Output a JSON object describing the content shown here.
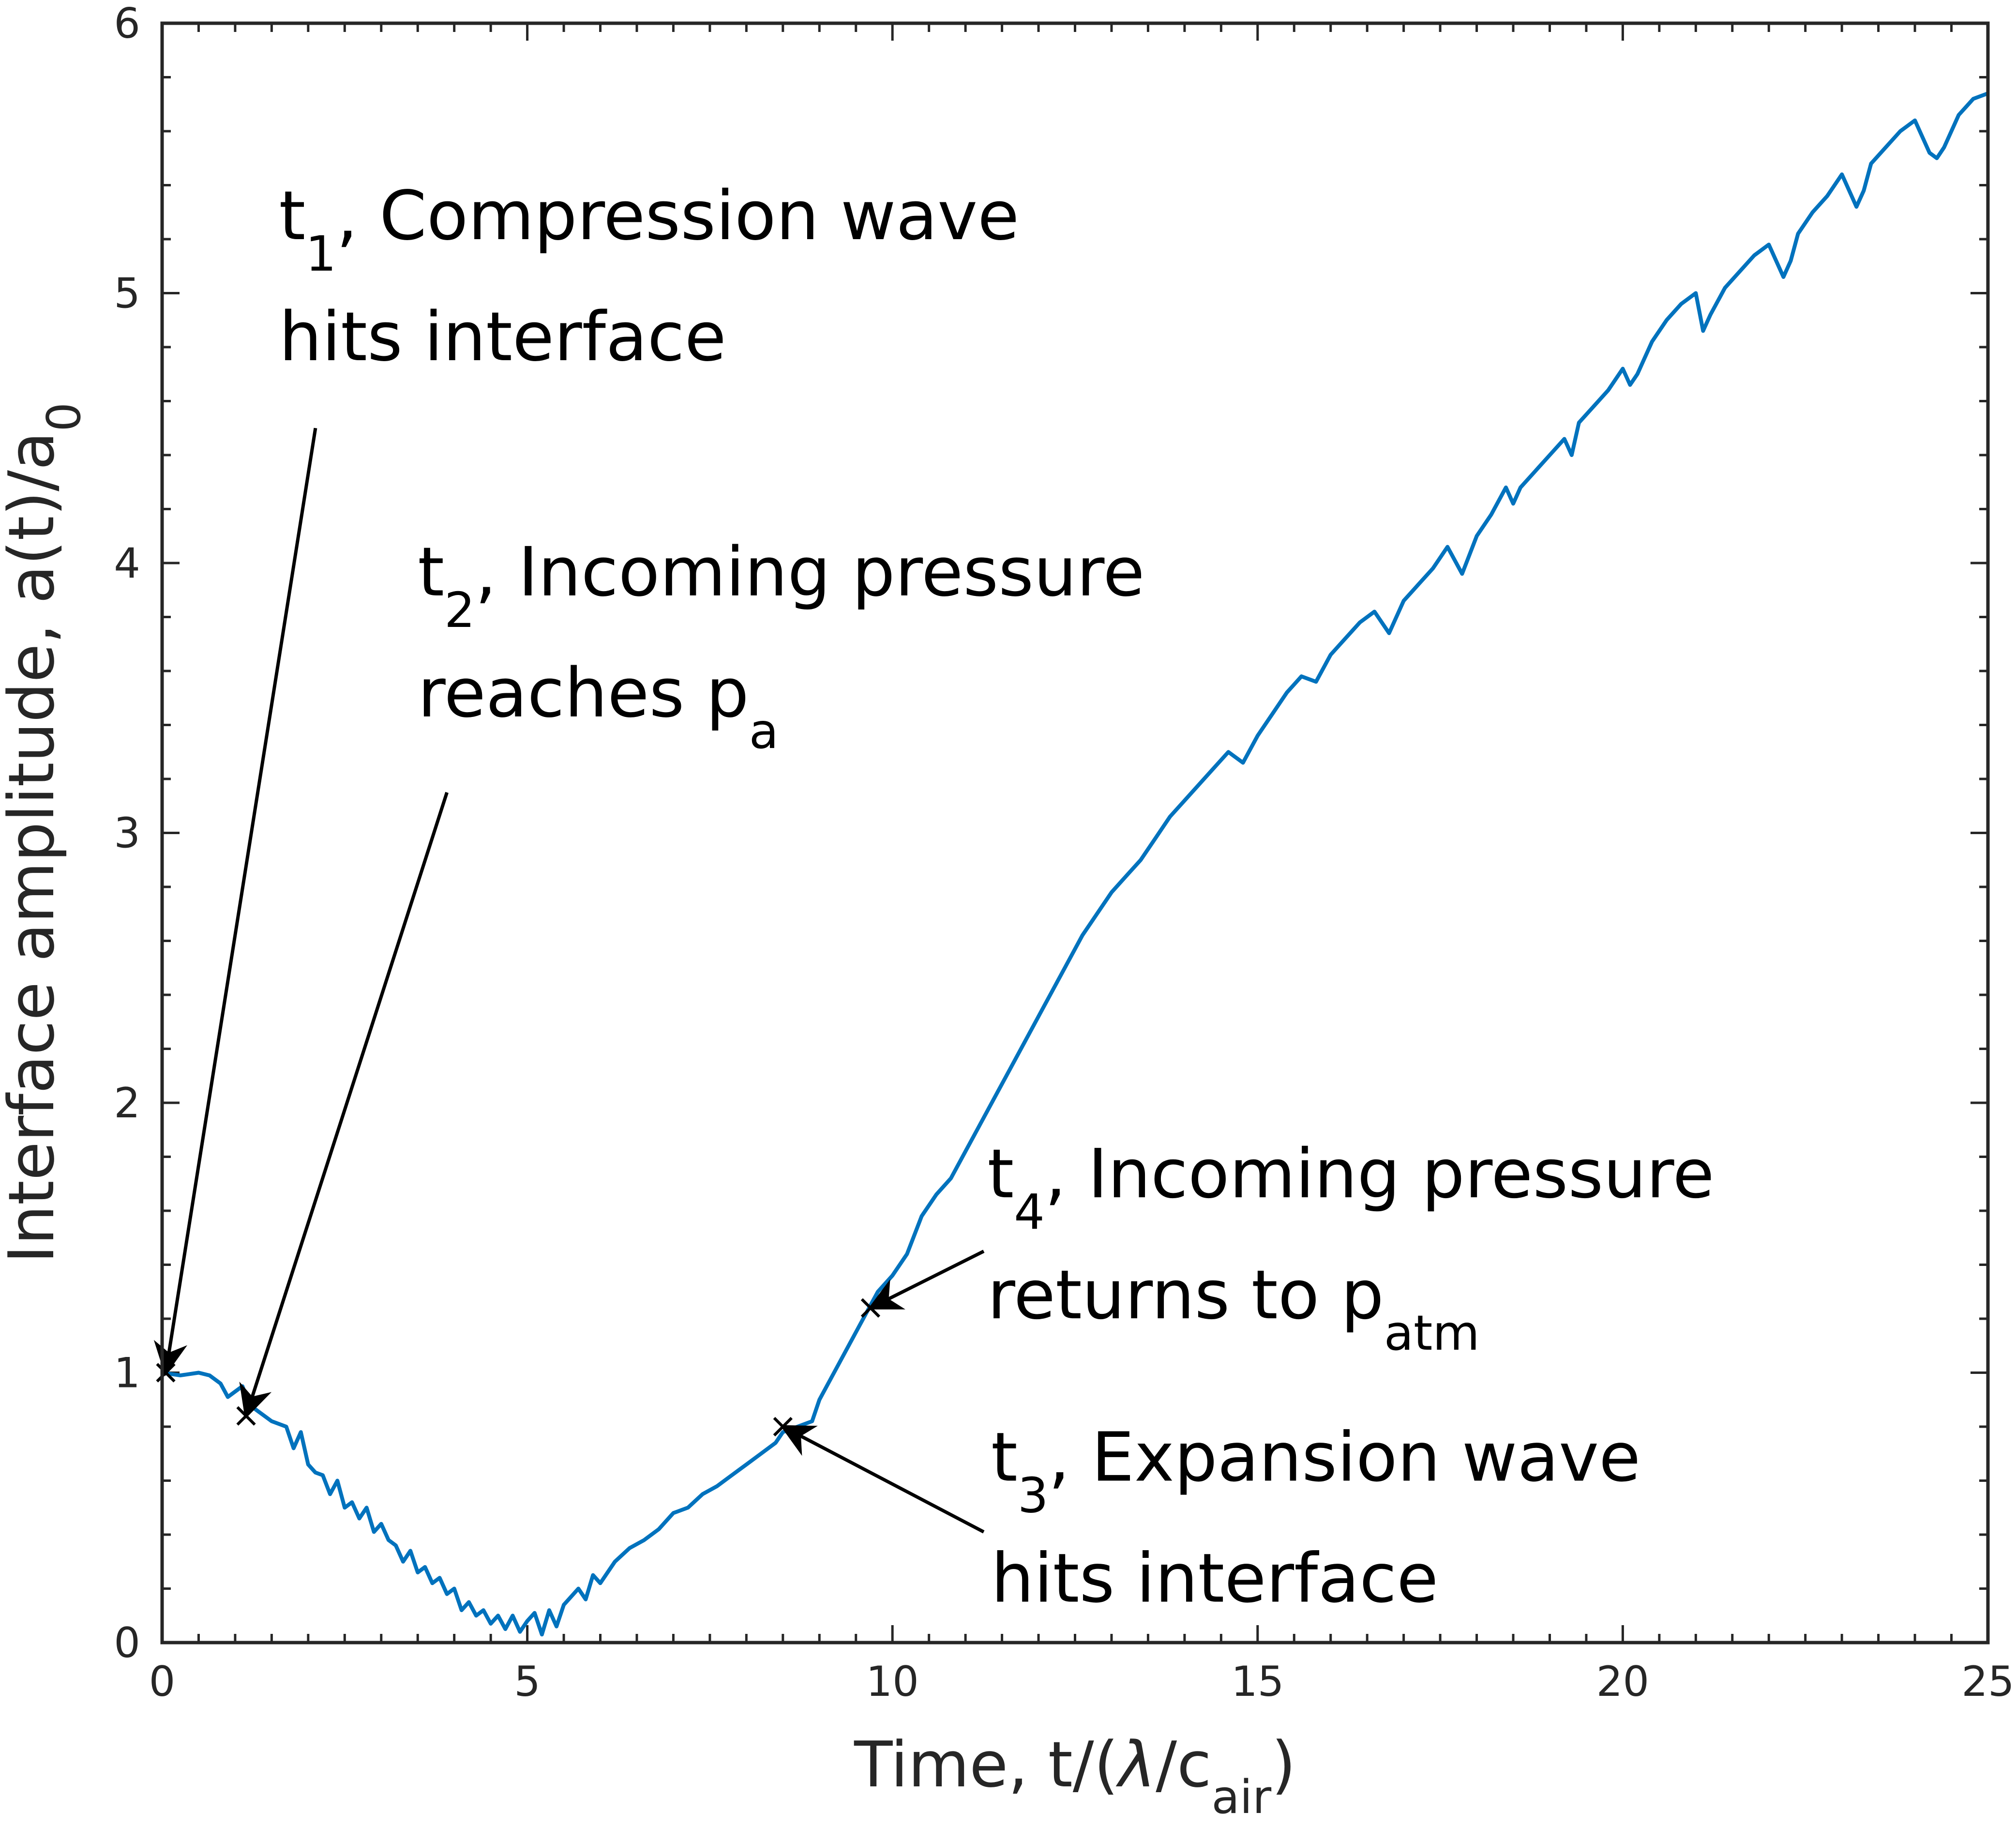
{
  "chart_data": {
    "type": "line",
    "xlabel": {
      "main": "Time, t/(",
      "lambda": "λ",
      "mid": "/c",
      "sub": "air",
      "end": ")"
    },
    "ylabel": {
      "main": "Interface amplitude, a(t)/a",
      "sub": "0"
    },
    "xlim": [
      0,
      25
    ],
    "ylim": [
      0,
      6
    ],
    "xticks": [
      0,
      5,
      10,
      15,
      20,
      25
    ],
    "yticks": [
      0,
      1,
      2,
      3,
      4,
      5,
      6
    ],
    "grid": false,
    "line_color": "#0072BD",
    "series": [
      {
        "x": [
          0,
          0.25,
          0.5,
          0.65,
          0.8,
          0.9,
          1.0,
          1.1,
          1.2,
          1.3,
          1.5,
          1.7,
          1.8,
          1.9,
          2.0,
          2.1,
          2.2,
          2.3,
          2.4,
          2.5,
          2.6,
          2.7,
          2.8,
          2.9,
          3.0,
          3.1,
          3.2,
          3.3,
          3.4,
          3.5,
          3.6,
          3.7,
          3.8,
          3.9,
          4.0,
          4.1,
          4.2,
          4.3,
          4.4,
          4.5,
          4.6,
          4.7,
          4.8,
          4.9,
          5.0,
          5.1,
          5.2,
          5.3,
          5.4,
          5.5,
          5.6,
          5.7,
          5.8,
          5.9,
          6.0,
          6.2,
          6.4,
          6.6,
          6.8,
          7.0,
          7.2,
          7.4,
          7.6,
          7.8,
          8.0,
          8.2,
          8.4,
          8.5,
          8.7,
          8.9,
          9.0,
          9.2,
          9.4,
          9.6,
          9.8,
          10.0,
          10.2,
          10.4,
          10.6,
          10.8,
          11.0,
          11.2,
          11.4,
          11.6,
          11.8,
          12.0,
          12.2,
          12.4,
          12.6,
          12.8,
          13.0,
          13.2,
          13.4,
          13.6,
          13.8,
          14.0,
          14.2,
          14.4,
          14.6,
          14.8,
          15.0,
          15.2,
          15.4,
          15.6,
          15.8,
          16.0,
          16.2,
          16.4,
          16.6,
          16.8,
          17.0,
          17.2,
          17.4,
          17.6,
          17.8,
          18.0,
          18.2,
          18.4,
          18.5,
          18.6,
          18.8,
          19.0,
          19.2,
          19.3,
          19.4,
          19.6,
          19.8,
          20.0,
          20.1,
          20.2,
          20.4,
          20.6,
          20.8,
          21.0,
          21.1,
          21.2,
          21.4,
          21.6,
          21.8,
          22.0,
          22.2,
          22.3,
          22.4,
          22.6,
          22.8,
          23.0,
          23.2,
          23.3,
          23.4,
          23.6,
          23.8,
          24.0,
          24.2,
          24.3,
          24.4,
          24.6,
          24.8,
          25.0
        ],
        "y": [
          1.0,
          0.99,
          1.0,
          0.99,
          0.96,
          0.91,
          0.93,
          0.95,
          0.88,
          0.86,
          0.82,
          0.8,
          0.72,
          0.78,
          0.66,
          0.63,
          0.62,
          0.55,
          0.6,
          0.5,
          0.52,
          0.46,
          0.5,
          0.41,
          0.44,
          0.38,
          0.36,
          0.3,
          0.34,
          0.26,
          0.28,
          0.22,
          0.24,
          0.18,
          0.2,
          0.12,
          0.15,
          0.1,
          0.12,
          0.07,
          0.1,
          0.05,
          0.1,
          0.04,
          0.08,
          0.11,
          0.03,
          0.12,
          0.06,
          0.14,
          0.17,
          0.2,
          0.16,
          0.25,
          0.22,
          0.3,
          0.35,
          0.38,
          0.42,
          0.48,
          0.5,
          0.55,
          0.58,
          0.62,
          0.66,
          0.7,
          0.74,
          0.78,
          0.8,
          0.82,
          0.9,
          1.0,
          1.1,
          1.2,
          1.3,
          1.36,
          1.44,
          1.58,
          1.66,
          1.72,
          1.82,
          1.92,
          2.02,
          2.12,
          2.22,
          2.32,
          2.42,
          2.52,
          2.62,
          2.7,
          2.78,
          2.84,
          2.9,
          2.98,
          3.06,
          3.12,
          3.18,
          3.24,
          3.3,
          3.26,
          3.36,
          3.44,
          3.52,
          3.58,
          3.56,
          3.66,
          3.72,
          3.78,
          3.82,
          3.74,
          3.86,
          3.92,
          3.98,
          4.06,
          3.96,
          4.1,
          4.18,
          4.28,
          4.22,
          4.28,
          4.34,
          4.4,
          4.46,
          4.4,
          4.52,
          4.58,
          4.64,
          4.72,
          4.66,
          4.7,
          4.82,
          4.9,
          4.96,
          5.0,
          4.86,
          4.92,
          5.02,
          5.08,
          5.14,
          5.18,
          5.06,
          5.12,
          5.22,
          5.3,
          5.36,
          5.44,
          5.32,
          5.38,
          5.48,
          5.54,
          5.6,
          5.64,
          5.52,
          5.5,
          5.54,
          5.66,
          5.72,
          5.74
        ]
      }
    ],
    "markers": [
      {
        "x": 0.05,
        "y": 1.0
      },
      {
        "x": 1.15,
        "y": 0.84
      },
      {
        "x": 8.5,
        "y": 0.8
      },
      {
        "x": 9.7,
        "y": 1.24
      }
    ],
    "annotations": [
      {
        "t": "t",
        "sub": "1",
        "rest": ", Compression wave",
        "line2": "hits interface",
        "line2_sub": "",
        "x": 1.6,
        "y": 5.2,
        "arrow_from": [
          2.1,
          4.5
        ],
        "arrow_to": [
          0.05,
          1.0
        ]
      },
      {
        "t": "t",
        "sub": "2",
        "rest": ", Incoming pressure",
        "line2": "reaches p",
        "line2_sub": "a",
        "x": 3.5,
        "y": 3.88,
        "arrow_from": [
          3.9,
          3.15
        ],
        "arrow_to": [
          1.15,
          0.84
        ]
      },
      {
        "t": "t",
        "sub": "3",
        "rest": ", Expansion wave",
        "line2": "hits interface",
        "line2_sub": "",
        "x": 11.35,
        "y": 0.6,
        "arrow_from": [
          11.25,
          0.41
        ],
        "arrow_to": [
          8.5,
          0.8
        ]
      },
      {
        "t": "t",
        "sub": "4",
        "rest": ", Incoming pressure",
        "line2": "returns to p",
        "line2_sub": "atm",
        "x": 11.3,
        "y": 1.65,
        "arrow_from": [
          11.25,
          1.45
        ],
        "arrow_to": [
          9.7,
          1.24
        ]
      }
    ]
  }
}
